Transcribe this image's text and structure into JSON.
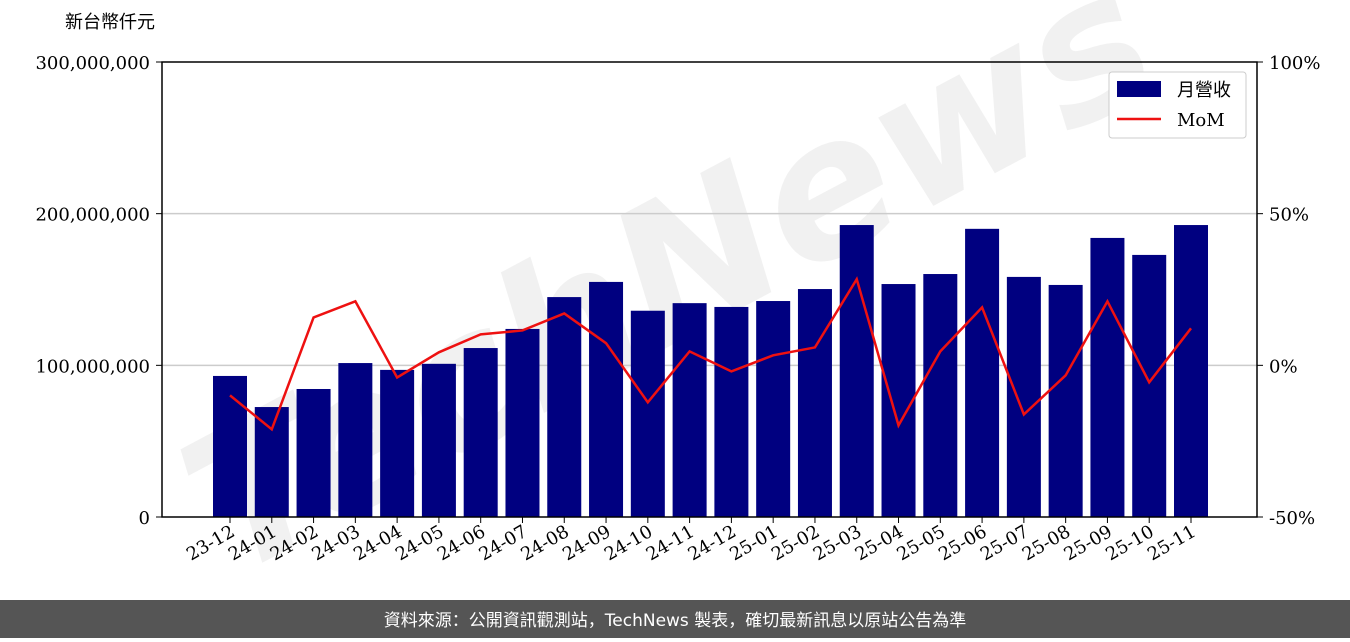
{
  "chart_data": {
    "type": "bar-line",
    "y_axis_label": "新台幣仟元",
    "watermark": "TechNews",
    "source": "資料來源：公開資訊觀測站，TechNews 製表，確切最新訊息以原站公告為準",
    "categories": [
      "23-12",
      "24-01",
      "24-02",
      "24-03",
      "24-04",
      "24-05",
      "24-06",
      "24-07",
      "24-08",
      "24-09",
      "24-10",
      "24-11",
      "24-12",
      "25-01",
      "25-02",
      "25-03",
      "25-04",
      "25-05",
      "25-06",
      "25-07",
      "25-08",
      "25-09",
      "25-10",
      "25-11"
    ],
    "series": [
      {
        "name": "月營收",
        "type": "bar",
        "color": "#000080",
        "values": [
          93000000,
          72500000,
          84400000,
          101500000,
          97000000,
          101000000,
          111400000,
          124000000,
          145000000,
          155000000,
          136000000,
          141000000,
          138500000,
          142400000,
          150300000,
          192500000,
          153600000,
          160200000,
          190000000,
          158300000,
          153000000,
          184000000,
          172800000,
          192500000
        ]
      },
      {
        "name": "MoM",
        "type": "line",
        "axis": "y2",
        "color": "#ee1111",
        "values": [
          -9.9,
          -21.1,
          15.8,
          21.1,
          -4,
          4.3,
          10.2,
          11.5,
          17.1,
          7.3,
          -12.2,
          4.6,
          -2,
          3.3,
          5.9,
          28.4,
          -19.8,
          4.6,
          19.1,
          -16.2,
          -3.3,
          21.1,
          -5.6,
          12.2
        ]
      }
    ],
    "ylim": [
      0,
      300000000
    ],
    "yticks": [
      0,
      {
        "value": 100000000,
        "label": "100,000,000"
      },
      {
        "value": 200000000,
        "label": "200,000,000"
      },
      {
        "value": 300000000,
        "label": "300,000,000"
      }
    ],
    "y2lim": [
      -50,
      100
    ],
    "y2ticks": [
      {
        "value": -50,
        "label": "-50%"
      },
      {
        "value": 0,
        "label": "0%"
      },
      {
        "value": 50,
        "label": "50%"
      },
      {
        "value": 100,
        "label": "100%"
      }
    ],
    "grid": true,
    "legend": "upper right"
  }
}
